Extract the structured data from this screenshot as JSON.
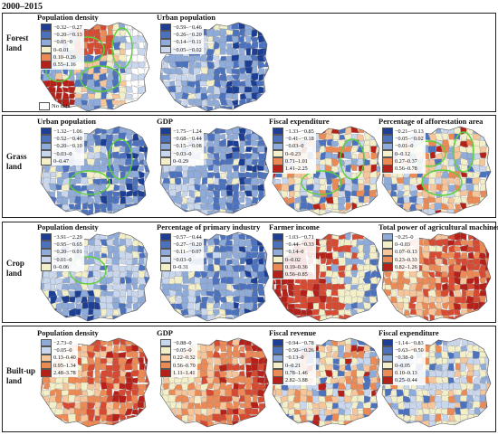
{
  "period_label": "2000–2015",
  "palette": {
    "blue": [
      "#1d3f93",
      "#4d72bd",
      "#8fabd9",
      "#c9d7ee"
    ],
    "neutral": "#f3f0c9",
    "red": [
      "#f6c69a",
      "#ec8a55",
      "#d64a32",
      "#b52119"
    ],
    "no_data": "#ffffff",
    "hotspot_outline": "#5ad13a"
  },
  "rows": [
    {
      "label": "Forest land",
      "panels": [
        {
          "title": "Population density",
          "legend": [
            {
              "range": "−0.32–−0.27",
              "color": "#1d3f93"
            },
            {
              "range": "−0.20–−0.13",
              "color": "#4d72bd"
            },
            {
              "range": "−0.05−0",
              "color": "#8fabd9"
            },
            {
              "range": "0–0.01",
              "color": "#f3f0c9"
            },
            {
              "range": "0.10–0.26",
              "color": "#ec8a55"
            },
            {
              "range": "0.55–1.16",
              "color": "#b52119"
            }
          ],
          "no_data": "No data",
          "pattern": "mixed_forest_pop",
          "hotspots": 4
        },
        {
          "title": "Urban population",
          "legend": [
            {
              "range": "−0.59–−0.46",
              "color": "#1d3f93"
            },
            {
              "range": "−0.26–−0.20",
              "color": "#4d72bd"
            },
            {
              "range": "−0.14–−0.11",
              "color": "#8fabd9"
            },
            {
              "range": "−0.05–−0.02",
              "color": "#c9d7ee"
            }
          ],
          "pattern": "blue",
          "hotspots": 0
        }
      ]
    },
    {
      "label": "Grass land",
      "panels": [
        {
          "title": "Urban population",
          "legend": [
            {
              "range": "−1.32–−1.06",
              "color": "#1d3f93"
            },
            {
              "range": "−0.52–−0.40",
              "color": "#4d72bd"
            },
            {
              "range": "−0.20–−0.10",
              "color": "#8fabd9"
            },
            {
              "range": "−0.03–0",
              "color": "#c9d7ee"
            },
            {
              "range": "0–0.47",
              "color": "#f3f0c9"
            }
          ],
          "pattern": "blue",
          "hotspots": 2
        },
        {
          "title": "GDP",
          "legend": [
            {
              "range": "−1.75–−1.24",
              "color": "#1d3f93"
            },
            {
              "range": "−0.68–−0.44",
              "color": "#4d72bd"
            },
            {
              "range": "−0.15–−0.08",
              "color": "#8fabd9"
            },
            {
              "range": "−0.03–0",
              "color": "#c9d7ee"
            },
            {
              "range": "0–0.29",
              "color": "#f3f0c9"
            }
          ],
          "pattern": "blue",
          "hotspots": 0
        },
        {
          "title": "Fiscal expenditure",
          "legend": [
            {
              "range": "−1.33–−0.85",
              "color": "#1d3f93"
            },
            {
              "range": "−0.41–−0.18",
              "color": "#4d72bd"
            },
            {
              "range": "−0.03–0",
              "color": "#8fabd9"
            },
            {
              "range": "0–0.23",
              "color": "#f3f0c9"
            },
            {
              "range": "0.71–1.01",
              "color": "#ec8a55"
            },
            {
              "range": "1.41–2.25",
              "color": "#b52119"
            }
          ],
          "pattern": "mixed",
          "hotspots": 2
        },
        {
          "title": "Percentage of afforestation area",
          "legend": [
            {
              "range": "−0.21–−0.13",
              "color": "#1d3f93"
            },
            {
              "range": "−0.05–−0.02",
              "color": "#4d72bd"
            },
            {
              "range": "−0.01–0",
              "color": "#8fabd9"
            },
            {
              "range": "0–0.12",
              "color": "#f3f0c9"
            },
            {
              "range": "0.27–0.37",
              "color": "#ec8a55"
            },
            {
              "range": "0.56–0.78",
              "color": "#b52119"
            }
          ],
          "pattern": "mixed",
          "hotspots": 3
        }
      ]
    },
    {
      "label": "Crop land",
      "panels": [
        {
          "title": "Population density",
          "legend": [
            {
              "range": "−3.91–−2.29",
              "color": "#1d3f93"
            },
            {
              "range": "−0.95–−0.65",
              "color": "#4d72bd"
            },
            {
              "range": "−0.20–−0.01",
              "color": "#8fabd9"
            },
            {
              "range": "−0.01–0",
              "color": "#c9d7ee"
            },
            {
              "range": "0–0.06",
              "color": "#f3f0c9"
            }
          ],
          "pattern": "light_blue",
          "hotspots": 1
        },
        {
          "title": "Percentage of primary industry",
          "legend": [
            {
              "range": "−0.57–−0.44",
              "color": "#1d3f93"
            },
            {
              "range": "−0.27–−0.20",
              "color": "#4d72bd"
            },
            {
              "range": "−0.11–−0.07",
              "color": "#8fabd9"
            },
            {
              "range": "−0.03–0",
              "color": "#c9d7ee"
            },
            {
              "range": "0–0.31",
              "color": "#f3f0c9"
            }
          ],
          "pattern": "blue",
          "hotspots": 0
        },
        {
          "title": "Farmer income",
          "legend": [
            {
              "range": "−1.03–−0.71",
              "color": "#1d3f93"
            },
            {
              "range": "−0.44–−0.33",
              "color": "#4d72bd"
            },
            {
              "range": "−0.14–0",
              "color": "#8fabd9"
            },
            {
              "range": "0–0.02",
              "color": "#f3f0c9"
            },
            {
              "range": "0.19–0.36",
              "color": "#ec8a55"
            },
            {
              "range": "0.56–0.85",
              "color": "#b52119"
            }
          ],
          "pattern": "red_west",
          "hotspots": 0
        },
        {
          "title": "Total power of agricultural machinery",
          "legend": [
            {
              "range": "−0.25–0",
              "color": "#8fabd9"
            },
            {
              "range": "0–0.03",
              "color": "#f3f0c9"
            },
            {
              "range": "0.07–0.13",
              "color": "#f6c69a"
            },
            {
              "range": "0.23–0.33",
              "color": "#ec8a55"
            },
            {
              "range": "0.82–1.26",
              "color": "#b52119"
            }
          ],
          "pattern": "red",
          "hotspots": 0
        }
      ]
    },
    {
      "label": "Built-up land",
      "panels": [
        {
          "title": "Population density",
          "legend": [
            {
              "range": "−2.73–0",
              "color": "#8fabd9"
            },
            {
              "range": "−0.05–0",
              "color": "#c9d7ee"
            },
            {
              "range": "0.13–0.40",
              "color": "#f6c69a"
            },
            {
              "range": "0.95–1.34",
              "color": "#ec8a55"
            },
            {
              "range": "2.48–3.78",
              "color": "#b52119"
            }
          ],
          "pattern": "red",
          "hotspots": 0
        },
        {
          "title": "GDP",
          "legend": [
            {
              "range": "−0.88–0",
              "color": "#c9d7ee"
            },
            {
              "range": "−0.05–0",
              "color": "#f3f0c9"
            },
            {
              "range": "0.22–0.32",
              "color": "#f6c69a"
            },
            {
              "range": "0.56–0.70",
              "color": "#ec8a55"
            },
            {
              "range": "1.11–1.41",
              "color": "#b52119"
            }
          ],
          "pattern": "red",
          "hotspots": 0
        },
        {
          "title": "Fiscal revenue",
          "legend": [
            {
              "range": "−0.94–−0.78",
              "color": "#1d3f93"
            },
            {
              "range": "−0.50–−0.26",
              "color": "#4d72bd"
            },
            {
              "range": "−0.13–0",
              "color": "#8fabd9"
            },
            {
              "range": "0–0.21",
              "color": "#f3f0c9"
            },
            {
              "range": "0.78–1.46",
              "color": "#ec8a55"
            },
            {
              "range": "2.82–3.88",
              "color": "#b52119"
            }
          ],
          "pattern": "mixed",
          "hotspots": 0
        },
        {
          "title": "Fiscal expenditure",
          "legend": [
            {
              "range": "−1.14–−0.83",
              "color": "#1d3f93"
            },
            {
              "range": "−0.63–−0.50",
              "color": "#4d72bd"
            },
            {
              "range": "−0.38–0",
              "color": "#8fabd9"
            },
            {
              "range": "0–0.05",
              "color": "#f3f0c9"
            },
            {
              "range": "0.10–0.13",
              "color": "#ec8a55"
            },
            {
              "range": "0.25–0.44",
              "color": "#b52119"
            }
          ],
          "pattern": "mixed_light",
          "hotspots": 0
        }
      ]
    }
  ]
}
